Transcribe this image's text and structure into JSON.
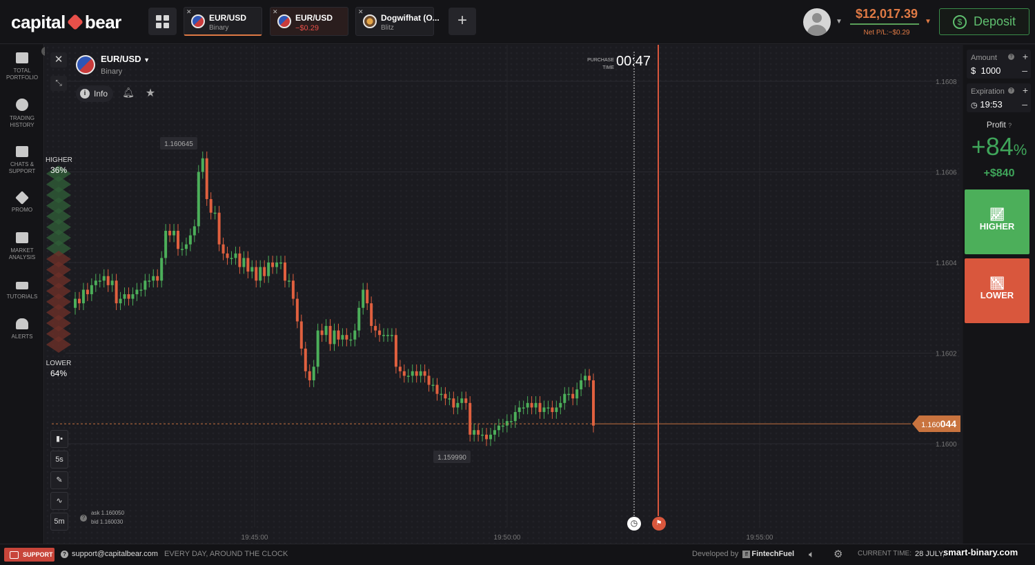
{
  "header": {
    "brand_left": "capital",
    "brand_right": "bear",
    "tabs": [
      {
        "name": "EUR/USD",
        "sub": "Binary",
        "active": true
      },
      {
        "name": "EUR/USD",
        "sub": "−$0.29",
        "active": false
      },
      {
        "name": "Dogwifhat (O...",
        "sub": "Blitz",
        "active": false
      }
    ],
    "balance": "$12,017.39",
    "net_pl": "Net P/L:−$0.29",
    "deposit_label": "Deposit"
  },
  "sidebar": {
    "items": [
      {
        "label": "TOTAL PORTFOLIO",
        "icon": "briefcase-icon",
        "badge": "1"
      },
      {
        "label": "TRADING HISTORY",
        "icon": "clock-icon"
      },
      {
        "label": "CHATS & SUPPORT",
        "icon": "chat-icon"
      },
      {
        "label": "PROMO",
        "icon": "rocket-icon"
      },
      {
        "label": "MARKET ANALYSIS",
        "icon": "bar-chart-icon"
      },
      {
        "label": "TUTORIALS",
        "icon": "graduation-cap-icon"
      },
      {
        "label": "ALERTS",
        "icon": "bell-icon"
      }
    ]
  },
  "asset": {
    "name": "EUR/USD",
    "type": "Binary",
    "info_label": "Info"
  },
  "purchase": {
    "label": "PURCHASE TIME",
    "time": "00:47"
  },
  "sentiment": {
    "higher_label": "HIGHER",
    "higher_pct": "36%",
    "lower_label": "LOWER",
    "lower_pct": "64%"
  },
  "current_price": {
    "prefix": "1.160",
    "suffix": "044"
  },
  "chart_tools": {
    "interval": "5s",
    "timeframe": "5m",
    "ask": "ask 1.160050",
    "bid": "bid 1.160030"
  },
  "chart_data": {
    "type": "candlestick",
    "y_ticks": [
      "1.1608",
      "1.1606",
      "1.1604",
      "1.1602",
      "1.1600"
    ],
    "x_ticks": [
      "19:45:00",
      "19:50:00",
      "19:55:00"
    ],
    "ylim": [
      1.15995,
      1.16085
    ],
    "high_label": "1.160645",
    "low_label": "1.159990",
    "current": 1.160044,
    "colors": {
      "up": "#4caf5a",
      "down": "#e0603f"
    },
    "closes": [
      1.16032,
      1.16031,
      1.16034,
      1.16033,
      1.16035,
      1.16036,
      1.16036,
      1.16037,
      1.16035,
      1.16036,
      1.16031,
      1.16032,
      1.16033,
      1.16032,
      1.16033,
      1.16034,
      1.16034,
      1.16036,
      1.16036,
      1.16037,
      1.16036,
      1.16041,
      1.16047,
      1.16046,
      1.16047,
      1.16043,
      1.16043,
      1.16044,
      1.16046,
      1.16048,
      1.1606,
      1.16063,
      1.16054,
      1.16051,
      1.16051,
      1.16044,
      1.16042,
      1.16041,
      1.16041,
      1.16042,
      1.16039,
      1.16041,
      1.16038,
      1.16039,
      1.16036,
      1.16039,
      1.16037,
      1.1604,
      1.16039,
      1.1604,
      1.1604,
      1.16036,
      1.16036,
      1.16032,
      1.16027,
      1.16021,
      1.16016,
      1.16014,
      1.16017,
      1.16025,
      1.16024,
      1.16026,
      1.16022,
      1.16025,
      1.16023,
      1.16024,
      1.16023,
      1.16023,
      1.16025,
      1.1603,
      1.16034,
      1.16031,
      1.16026,
      1.16025,
      1.16024,
      1.16024,
      1.16024,
      1.16024,
      1.16017,
      1.16016,
      1.16015,
      1.16015,
      1.16016,
      1.16015,
      1.16016,
      1.16015,
      1.16013,
      1.16013,
      1.16011,
      1.16011,
      1.1601,
      1.1601,
      1.16008,
      1.16009,
      1.1601,
      1.16009,
      1.16002,
      1.16003,
      1.16002,
      1.16002,
      1.16001,
      1.16002,
      1.16003,
      1.16004,
      1.16004,
      1.16005,
      1.16005,
      1.16007,
      1.16008,
      1.16008,
      1.16009,
      1.16008,
      1.16009,
      1.16007,
      1.16008,
      1.16008,
      1.16007,
      1.16008,
      1.16009,
      1.16011,
      1.16011,
      1.1601,
      1.16012,
      1.16014,
      1.16015,
      1.16014,
      1.16004
    ]
  },
  "trade": {
    "amount_label": "Amount",
    "currency": "$",
    "amount": "1000",
    "expiration_label": "Expiration",
    "expiration": "19:53",
    "profit_label": "Profit",
    "profit_pct": "+84",
    "profit_pct_sign": "%",
    "profit_usd": "+$840",
    "higher_label": "HIGHER",
    "lower_label": "LOWER"
  },
  "footer": {
    "support_label": "SUPPORT",
    "email": "support@capitalbear.com",
    "hours": "EVERY DAY, AROUND THE CLOCK",
    "developed_by": "Developed by",
    "developer": "FintechFuel",
    "current_time_label": "CURRENT TIME:",
    "date": "28 JULY,",
    "watermark": "smart-binary.com"
  }
}
